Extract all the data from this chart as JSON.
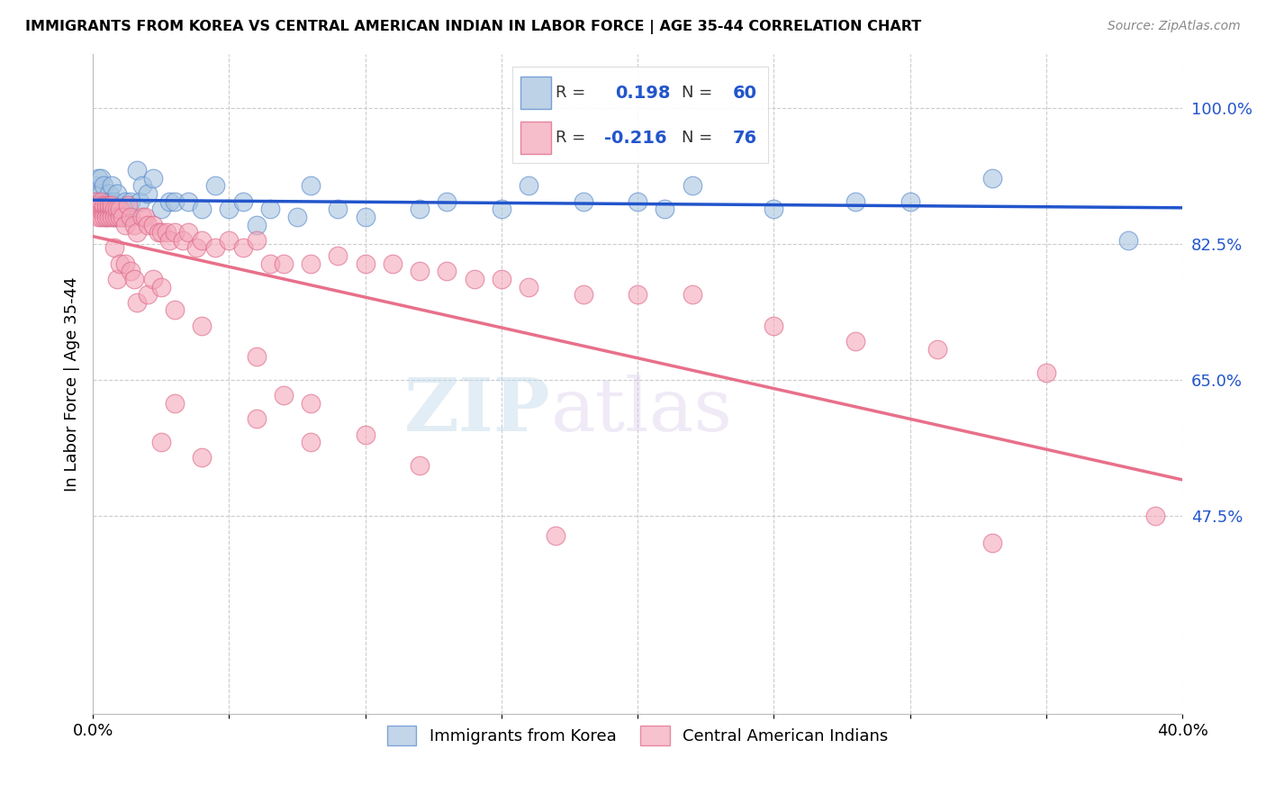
{
  "title": "IMMIGRANTS FROM KOREA VS CENTRAL AMERICAN INDIAN IN LABOR FORCE | AGE 35-44 CORRELATION CHART",
  "source": "Source: ZipAtlas.com",
  "ylabel": "In Labor Force | Age 35-44",
  "xmin": 0.0,
  "xmax": 0.4,
  "ymin": 0.22,
  "ymax": 1.07,
  "blue_color": "#A8C4E0",
  "pink_color": "#F4A7B9",
  "blue_line_color": "#2255CC",
  "pink_line_color": "#E8708A",
  "blue_edge_color": "#5588CC",
  "pink_edge_color": "#DD6688",
  "watermark_text": "ZIPatlas",
  "blue_scatter_x": [
    0.001,
    0.001,
    0.001,
    0.002,
    0.002,
    0.002,
    0.003,
    0.003,
    0.003,
    0.004,
    0.004,
    0.004,
    0.005,
    0.005,
    0.006,
    0.006,
    0.006,
    0.007,
    0.007,
    0.008,
    0.008,
    0.009,
    0.009,
    0.01,
    0.011,
    0.012,
    0.013,
    0.014,
    0.016,
    0.017,
    0.018,
    0.02,
    0.022,
    0.025,
    0.028,
    0.03,
    0.035,
    0.04,
    0.045,
    0.05,
    0.055,
    0.06,
    0.065,
    0.075,
    0.08,
    0.09,
    0.1,
    0.12,
    0.13,
    0.15,
    0.16,
    0.18,
    0.2,
    0.21,
    0.22,
    0.25,
    0.28,
    0.3,
    0.33,
    0.38
  ],
  "blue_scatter_y": [
    0.875,
    0.88,
    0.9,
    0.875,
    0.88,
    0.91,
    0.87,
    0.89,
    0.91,
    0.88,
    0.87,
    0.9,
    0.88,
    0.86,
    0.87,
    0.89,
    0.88,
    0.87,
    0.9,
    0.86,
    0.88,
    0.87,
    0.89,
    0.87,
    0.86,
    0.88,
    0.86,
    0.88,
    0.92,
    0.88,
    0.9,
    0.89,
    0.91,
    0.87,
    0.88,
    0.88,
    0.88,
    0.87,
    0.9,
    0.87,
    0.88,
    0.85,
    0.87,
    0.86,
    0.9,
    0.87,
    0.86,
    0.87,
    0.88,
    0.87,
    0.9,
    0.88,
    0.88,
    0.87,
    0.9,
    0.87,
    0.88,
    0.88,
    0.91,
    0.83
  ],
  "pink_scatter_x": [
    0.001,
    0.001,
    0.001,
    0.002,
    0.002,
    0.002,
    0.002,
    0.003,
    0.003,
    0.003,
    0.003,
    0.004,
    0.004,
    0.004,
    0.005,
    0.005,
    0.005,
    0.006,
    0.006,
    0.006,
    0.007,
    0.007,
    0.007,
    0.008,
    0.008,
    0.009,
    0.009,
    0.01,
    0.01,
    0.011,
    0.012,
    0.013,
    0.014,
    0.015,
    0.016,
    0.018,
    0.019,
    0.02,
    0.022,
    0.024,
    0.025,
    0.027,
    0.028,
    0.03,
    0.033,
    0.035,
    0.038,
    0.04,
    0.045,
    0.05,
    0.055,
    0.06,
    0.065,
    0.07,
    0.08,
    0.09,
    0.1,
    0.11,
    0.12,
    0.13,
    0.14,
    0.15,
    0.16,
    0.18,
    0.2,
    0.22,
    0.25,
    0.28,
    0.31,
    0.35,
    0.025,
    0.03,
    0.04,
    0.06,
    0.08,
    0.39
  ],
  "pink_scatter_y": [
    0.875,
    0.88,
    0.875,
    0.86,
    0.87,
    0.875,
    0.87,
    0.86,
    0.87,
    0.875,
    0.88,
    0.87,
    0.86,
    0.875,
    0.87,
    0.875,
    0.86,
    0.87,
    0.86,
    0.875,
    0.87,
    0.86,
    0.875,
    0.87,
    0.86,
    0.86,
    0.87,
    0.86,
    0.87,
    0.86,
    0.85,
    0.875,
    0.86,
    0.85,
    0.84,
    0.86,
    0.86,
    0.85,
    0.85,
    0.84,
    0.84,
    0.84,
    0.83,
    0.84,
    0.83,
    0.84,
    0.82,
    0.83,
    0.82,
    0.83,
    0.82,
    0.83,
    0.8,
    0.8,
    0.8,
    0.81,
    0.8,
    0.8,
    0.79,
    0.79,
    0.78,
    0.78,
    0.77,
    0.76,
    0.76,
    0.76,
    0.72,
    0.7,
    0.69,
    0.66,
    0.57,
    0.62,
    0.55,
    0.6,
    0.57,
    0.475
  ],
  "pink_outliers_x": [
    0.008,
    0.009,
    0.01,
    0.012,
    0.014,
    0.015,
    0.016,
    0.02,
    0.022,
    0.025,
    0.03,
    0.04,
    0.06,
    0.07,
    0.08,
    0.1,
    0.12,
    0.17,
    0.33
  ],
  "pink_outliers_y": [
    0.82,
    0.78,
    0.8,
    0.8,
    0.79,
    0.78,
    0.75,
    0.76,
    0.78,
    0.77,
    0.74,
    0.72,
    0.68,
    0.63,
    0.62,
    0.58,
    0.54,
    0.45,
    0.44
  ]
}
